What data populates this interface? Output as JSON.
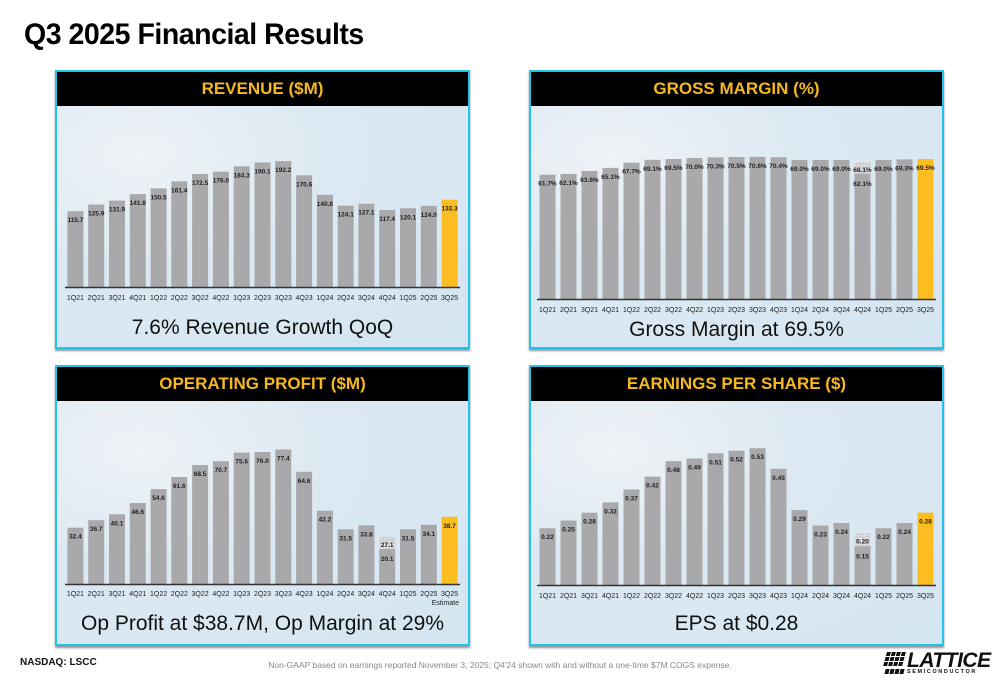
{
  "page": {
    "title": "Q3 2025 Financial Results",
    "ticker": "NASDAQ: LSCC",
    "footnote": "Non-GAAP based on earnings reported November 3, 2025; Q4'24 shown with and without a one-time $7M COGS expense.",
    "logo_word": "LATTICE",
    "logo_sub": "SEMICONDUCTOR"
  },
  "colors": {
    "bar": "#a9a9ab",
    "highlight": "#fbbd20",
    "header_bg": "#000000",
    "header_text": "#f5b820",
    "panel_border": "#22c4ea"
  },
  "panels": [
    {
      "header": "REVENUE ($M)",
      "caption": "7.6% Revenue Growth QoQ"
    },
    {
      "header": "GROSS MARGIN (%)",
      "caption": "Gross Margin at 69.5%"
    },
    {
      "header": "OPERATING PROFIT ($M)",
      "caption": "Op Profit at $38.7M, Op Margin at 29%"
    },
    {
      "header": "EARNINGS PER SHARE ($)",
      "caption": "EPS at $0.28"
    }
  ],
  "chart_data": [
    {
      "type": "bar",
      "title": "REVENUE ($M)",
      "categories": [
        "1Q21",
        "2Q21",
        "3Q21",
        "4Q21",
        "1Q22",
        "2Q22",
        "3Q22",
        "4Q22",
        "1Q23",
        "2Q23",
        "3Q23",
        "4Q23",
        "1Q24",
        "2Q24",
        "3Q24",
        "4Q24",
        "1Q25",
        "2Q25",
        "3Q25"
      ],
      "values": [
        115.7,
        125.9,
        131.9,
        141.8,
        150.5,
        161.4,
        172.5,
        176.0,
        184.3,
        190.1,
        192.2,
        170.6,
        140.8,
        124.1,
        127.1,
        117.4,
        120.1,
        124.0,
        133.3
      ],
      "labels": [
        "115.7",
        "125.9",
        "131.9",
        "141.8",
        "150.5",
        "161.4",
        "172.5",
        "176.0",
        "184.3",
        "190.1",
        "192.2",
        "170.6",
        "140.8",
        "124.1",
        "127.1",
        "117.4",
        "120.1",
        "124.0",
        "133.3"
      ],
      "highlight_index": 18,
      "ylim": [
        0,
        200
      ],
      "xlabel": "",
      "ylabel": "",
      "grid": false,
      "legend": "none"
    },
    {
      "type": "bar",
      "title": "GROSS MARGIN (%)",
      "categories": [
        "1Q21",
        "2Q21",
        "3Q21",
        "4Q21",
        "1Q22",
        "2Q22",
        "3Q22",
        "4Q22",
        "1Q23",
        "2Q23",
        "3Q23",
        "4Q23",
        "1Q24",
        "2Q24",
        "3Q24",
        "4Q24",
        "1Q25",
        "2Q25",
        "3Q25"
      ],
      "values": [
        61.7,
        62.1,
        63.6,
        65.1,
        67.7,
        69.1,
        69.5,
        70.0,
        70.3,
        70.5,
        70.6,
        70.4,
        69.0,
        69.0,
        69.0,
        62.1,
        69.0,
        69.3,
        69.5
      ],
      "labels": [
        "61.7%",
        "62.1%",
        "63.6%",
        "65.1%",
        "67.7%",
        "69.1%",
        "69.5%",
        "70.0%",
        "70.3%",
        "70.5%",
        "70.6%",
        "70.4%",
        "69.0%",
        "69.0%",
        "69.0%",
        "62.1%",
        "69.0%",
        "69.3%",
        "69.5%"
      ],
      "alt_values": {
        "15": {
          "value": 68.1,
          "label": "68.1%",
          "note": "without one-time $7M COGS expense"
        }
      },
      "highlight_index": 18,
      "ylim": [
        0,
        72
      ],
      "xlabel": "",
      "ylabel": "",
      "grid": false,
      "legend": "none"
    },
    {
      "type": "bar",
      "title": "OPERATING PROFIT ($M)",
      "categories": [
        "1Q21",
        "2Q21",
        "3Q21",
        "4Q21",
        "1Q22",
        "2Q22",
        "3Q22",
        "4Q22",
        "1Q23",
        "2Q23",
        "3Q23",
        "4Q23",
        "1Q24",
        "2Q24",
        "3Q24",
        "4Q24",
        "1Q25",
        "2Q25",
        "3Q25"
      ],
      "values": [
        32.4,
        36.7,
        40.1,
        46.6,
        54.6,
        61.6,
        68.5,
        70.7,
        75.6,
        76.0,
        77.4,
        64.6,
        42.2,
        31.5,
        33.8,
        20.1,
        31.5,
        34.1,
        38.7
      ],
      "labels": [
        "32.4",
        "36.7",
        "40.1",
        "46.6",
        "54.6",
        "61.6",
        "68.5",
        "70.7",
        "75.6",
        "76.0",
        "77.4",
        "64.6",
        "42.2",
        "31.5",
        "33.8",
        "20.1",
        "31.5",
        "34.1",
        "38.7"
      ],
      "alt_values": {
        "15": {
          "value": 27.1,
          "label": "27.1",
          "note": "without one-time $7M COGS expense"
        }
      },
      "highlight_index": 18,
      "sublabel": {
        "index": 18,
        "text": "Estimate"
      },
      "ylim": [
        0,
        80
      ],
      "xlabel": "",
      "ylabel": "",
      "grid": false,
      "legend": "none"
    },
    {
      "type": "bar",
      "title": "EARNINGS PER SHARE ($)",
      "categories": [
        "1Q21",
        "2Q21",
        "3Q21",
        "4Q21",
        "1Q22",
        "2Q22",
        "3Q22",
        "4Q22",
        "1Q23",
        "2Q23",
        "3Q23",
        "4Q23",
        "1Q24",
        "2Q24",
        "3Q24",
        "4Q24",
        "1Q25",
        "2Q25",
        "3Q25"
      ],
      "values": [
        0.22,
        0.25,
        0.28,
        0.32,
        0.37,
        0.42,
        0.48,
        0.49,
        0.51,
        0.52,
        0.53,
        0.45,
        0.29,
        0.23,
        0.24,
        0.15,
        0.22,
        0.24,
        0.28
      ],
      "labels": [
        "0.22",
        "0.25",
        "0.28",
        "0.32",
        "0.37",
        "0.42",
        "0.48",
        "0.49",
        "0.51",
        "0.52",
        "0.53",
        "0.45",
        "0.29",
        "0.23",
        "0.24",
        "0.15",
        "0.22",
        "0.24",
        "0.28"
      ],
      "alt_values": {
        "15": {
          "value": 0.2,
          "label": "0.20",
          "note": "without one-time $7M COGS expense"
        }
      },
      "highlight_index": 18,
      "ylim": [
        0,
        0.55
      ],
      "xlabel": "",
      "ylabel": "",
      "grid": false,
      "legend": "none"
    }
  ]
}
